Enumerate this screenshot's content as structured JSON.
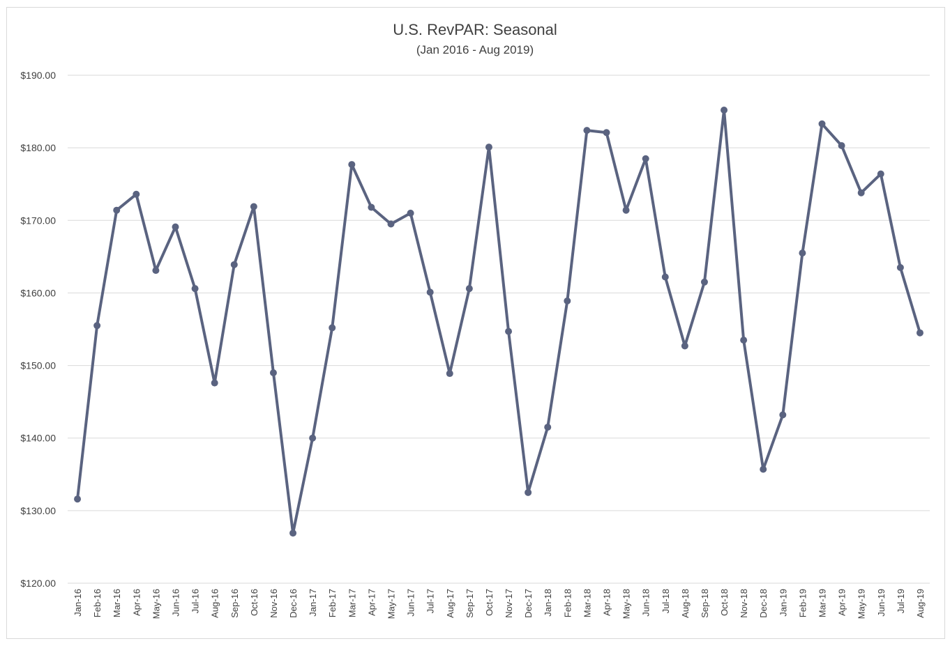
{
  "chart_data": {
    "type": "line",
    "title": "U.S. RevPAR: Seasonal",
    "subtitle": "(Jan 2016 - Aug 2019)",
    "xlabel": "",
    "ylabel": "",
    "ylim": [
      120,
      190
    ],
    "yticks": [
      120,
      130,
      140,
      150,
      160,
      170,
      180,
      190
    ],
    "ytick_labels": [
      "$120.00",
      "$130.00",
      "$140.00",
      "$150.00",
      "$160.00",
      "$170.00",
      "$180.00",
      "$190.00"
    ],
    "grid": true,
    "legend": "none",
    "line_color": "#5a6380",
    "categories": [
      "Jan-16",
      "Feb-16",
      "Mar-16",
      "Apr-16",
      "May-16",
      "Jun-16",
      "Jul-16",
      "Aug-16",
      "Sep-16",
      "Oct-16",
      "Nov-16",
      "Dec-16",
      "Jan-17",
      "Feb-17",
      "Mar-17",
      "Apr-17",
      "May-17",
      "Jun-17",
      "Jul-17",
      "Aug-17",
      "Sep-17",
      "Oct-17",
      "Nov-17",
      "Dec-17",
      "Jan-18",
      "Feb-18",
      "Mar-18",
      "Apr-18",
      "May-18",
      "Jun-18",
      "Jul-18",
      "Aug-18",
      "Sep-18",
      "Oct-18",
      "Nov-18",
      "Dec-18",
      "Jan-19",
      "Feb-19",
      "Mar-19",
      "Apr-19",
      "May-19",
      "Jun-19",
      "Jul-19",
      "Aug-19"
    ],
    "values": [
      131.6,
      155.5,
      171.4,
      173.6,
      163.1,
      169.1,
      160.6,
      147.6,
      163.9,
      171.9,
      149.0,
      126.9,
      140.0,
      155.2,
      177.7,
      171.8,
      169.5,
      171.0,
      160.1,
      148.9,
      160.6,
      180.1,
      154.7,
      132.5,
      141.5,
      158.9,
      182.4,
      182.1,
      171.4,
      178.5,
      162.2,
      152.7,
      161.5,
      185.2,
      153.5,
      135.7,
      143.2,
      165.5,
      183.3,
      180.3,
      173.8,
      176.4,
      163.5,
      154.5
    ]
  }
}
